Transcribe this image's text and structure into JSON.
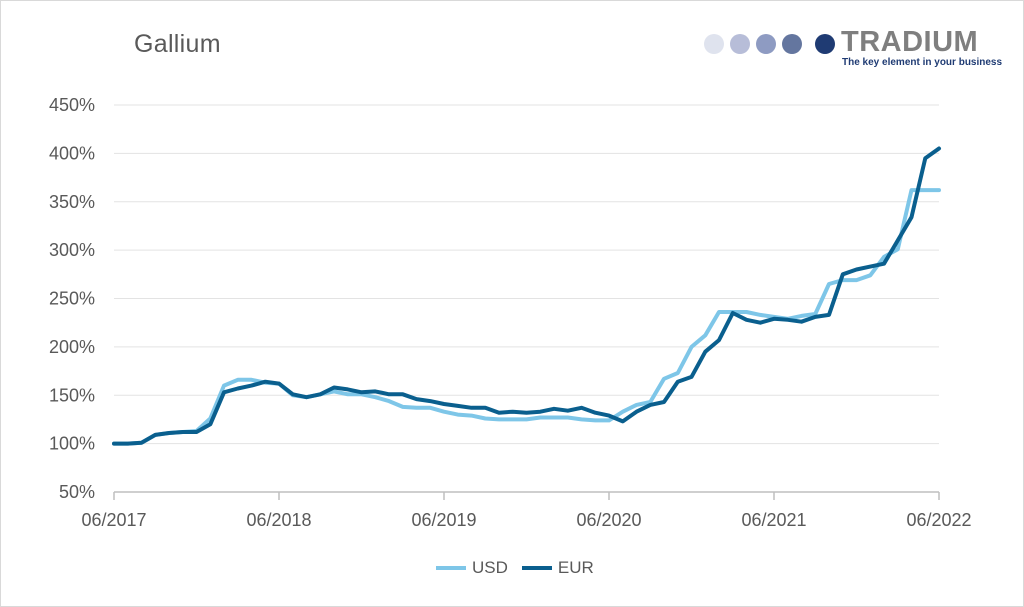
{
  "colors": {
    "usd": "#7ec6e8",
    "eur": "#0a5f8e",
    "grid": "#e3e3e3",
    "axis": "#bfbfbf"
  },
  "brand": {
    "name": "TRADIUM",
    "tagline": "The key element in your business",
    "dot_colors": [
      "#dfe3ee",
      "#b7bdd8",
      "#8e9bc2",
      "#64769f",
      "#1f3b73"
    ]
  },
  "chart_data": {
    "type": "line",
    "title": "Gallium",
    "x": [
      "06/2017",
      "07/2017",
      "08/2017",
      "09/2017",
      "10/2017",
      "11/2017",
      "12/2017",
      "01/2018",
      "02/2018",
      "03/2018",
      "04/2018",
      "05/2018",
      "06/2018",
      "07/2018",
      "08/2018",
      "09/2018",
      "10/2018",
      "11/2018",
      "12/2018",
      "01/2019",
      "02/2019",
      "03/2019",
      "04/2019",
      "05/2019",
      "06/2019",
      "07/2019",
      "08/2019",
      "09/2019",
      "10/2019",
      "11/2019",
      "12/2019",
      "01/2020",
      "02/2020",
      "03/2020",
      "04/2020",
      "05/2020",
      "06/2020",
      "07/2020",
      "08/2020",
      "09/2020",
      "10/2020",
      "11/2020",
      "12/2020",
      "01/2021",
      "02/2021",
      "03/2021",
      "04/2021",
      "05/2021",
      "06/2021",
      "07/2021",
      "08/2021",
      "09/2021",
      "10/2021",
      "11/2021",
      "12/2021",
      "01/2022",
      "02/2022",
      "03/2022",
      "04/2022",
      "05/2022",
      "06/2022"
    ],
    "x_tick_labels": [
      "06/2017",
      "06/2018",
      "06/2019",
      "06/2020",
      "06/2021",
      "06/2022"
    ],
    "series": [
      {
        "name": "USD",
        "values": [
          100,
          100,
          101,
          109,
          111,
          112,
          113,
          126,
          160,
          166,
          166,
          163,
          162,
          150,
          148,
          151,
          154,
          151,
          151,
          148,
          144,
          138,
          137,
          137,
          133,
          130,
          129,
          126,
          125,
          125,
          125,
          127,
          127,
          127,
          125,
          124,
          124,
          133,
          140,
          143,
          167,
          173,
          200,
          212,
          236,
          236,
          236,
          233,
          231,
          229,
          232,
          234,
          265,
          269,
          269,
          274,
          293,
          301,
          362,
          362,
          362
        ]
      },
      {
        "name": "EUR",
        "values": [
          100,
          100,
          101,
          109,
          111,
          112,
          112,
          120,
          153,
          157,
          160,
          164,
          162,
          151,
          148,
          151,
          158,
          156,
          153,
          154,
          151,
          151,
          146,
          144,
          141,
          139,
          137,
          137,
          132,
          133,
          132,
          133,
          136,
          134,
          137,
          132,
          129,
          123,
          133,
          140,
          143,
          164,
          169,
          195,
          207,
          235,
          228,
          225,
          229,
          228,
          226,
          231,
          233,
          275,
          280,
          283,
          286,
          310,
          334,
          395,
          405
        ]
      }
    ],
    "y_ticks": [
      "50%",
      "100%",
      "150%",
      "200%",
      "250%",
      "300%",
      "350%",
      "400%",
      "450%"
    ],
    "ylim": [
      50,
      450
    ],
    "grid": true,
    "legend_position": "bottom-center"
  }
}
